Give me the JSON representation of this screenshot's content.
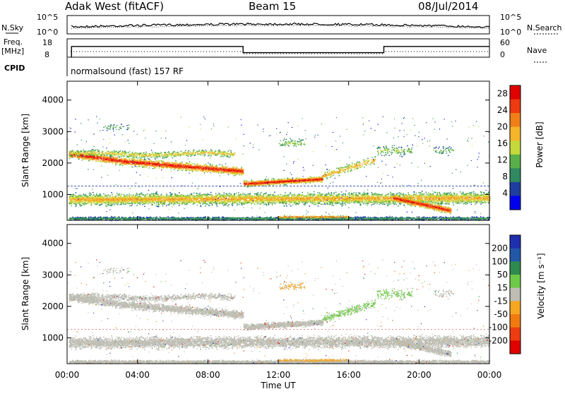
{
  "header": {
    "station": "Adak West (fitACF)",
    "beam": "Beam 15",
    "date": "08/Jul/2014"
  },
  "status_panels": {
    "nsky_label": "N.Sky",
    "nsearch_label": "N.Search",
    "noise_ticks": [
      "10^5",
      "10^0"
    ],
    "noise_ticks_right": [
      "10^5",
      "10^0"
    ],
    "freq_label": "Freq.",
    "freq_unit": "[MHz]",
    "freq_ticks": [
      "18",
      "8"
    ],
    "nave_label": "Nave",
    "nave_ticks": [
      "60",
      "0"
    ],
    "freq_mhz_segments": [
      {
        "start": "00:15",
        "end": "10:00",
        "value": 14
      },
      {
        "start": "10:00",
        "end": "18:00",
        "value": 10
      },
      {
        "start": "18:00",
        "end": "24:00",
        "value": 14
      }
    ],
    "cpid_label": "CPID",
    "cpid_text": "normalsound (fast) 157 RF"
  },
  "colors": {
    "power_scale": [
      "#0000ee",
      "#1e3d9e",
      "#2f8a60",
      "#59b04a",
      "#c5d93b",
      "#f5b52a",
      "#f07f1a",
      "#ee3a10",
      "#e00000"
    ],
    "velocity_scale": [
      "#1e2fae",
      "#2357a8",
      "#2f8a4d",
      "#6fc948",
      "#bebeb5",
      "#f5a623",
      "#f07a10",
      "#ee3c10",
      "#e00000"
    ],
    "power_sample": "#3a7a6a",
    "ground_gray": "#bebeb5"
  },
  "chart_data": [
    {
      "type": "heatmap",
      "name": "power",
      "ylabel": "Slant Range [km]",
      "xlabel": "",
      "x_ticks": [
        "00:00",
        "04:00",
        "08:00",
        "12:00",
        "16:00",
        "20:00",
        "00:00"
      ],
      "y_ticks": [
        1000,
        2000,
        3000,
        4000
      ],
      "ylim": [
        180,
        4600
      ],
      "colorbar": {
        "label": "Power [dB]",
        "ticks": [
          4,
          8,
          12,
          16,
          20,
          24,
          28
        ],
        "range": [
          0,
          30
        ]
      },
      "features_km_by_hour": [
        {
          "start_h": 0.1,
          "end_h": 10.0,
          "center_km": [
            2300,
            2050,
            1900,
            1750
          ],
          "width_km": 350,
          "peak_db": 28
        },
        {
          "start_h": 10.0,
          "end_h": 14.5,
          "center_km": [
            1350,
            1500
          ],
          "width_km": 250,
          "peak_db": 28
        },
        {
          "start_h": 0.1,
          "end_h": 24.0,
          "center_km": [
            850,
            900
          ],
          "width_km": 500,
          "peak_db": 20
        },
        {
          "start_h": 18.5,
          "end_h": 21.8,
          "center_km": [
            900,
            500
          ],
          "width_km": 300,
          "peak_db": 28
        }
      ]
    },
    {
      "type": "heatmap",
      "name": "velocity",
      "ylabel": "Slant Range [km]",
      "xlabel": "Time UT",
      "x_ticks": [
        "00:00",
        "04:00",
        "08:00",
        "12:00",
        "16:00",
        "20:00",
        "00:00"
      ],
      "y_ticks": [
        1000,
        2000,
        3000,
        4000
      ],
      "ylim": [
        180,
        4600
      ],
      "colorbar": {
        "label": "Velocity [m s⁻¹]",
        "ticks": [
          200,
          100,
          50,
          15,
          -15,
          -50,
          -100,
          -200
        ]
      }
    }
  ]
}
